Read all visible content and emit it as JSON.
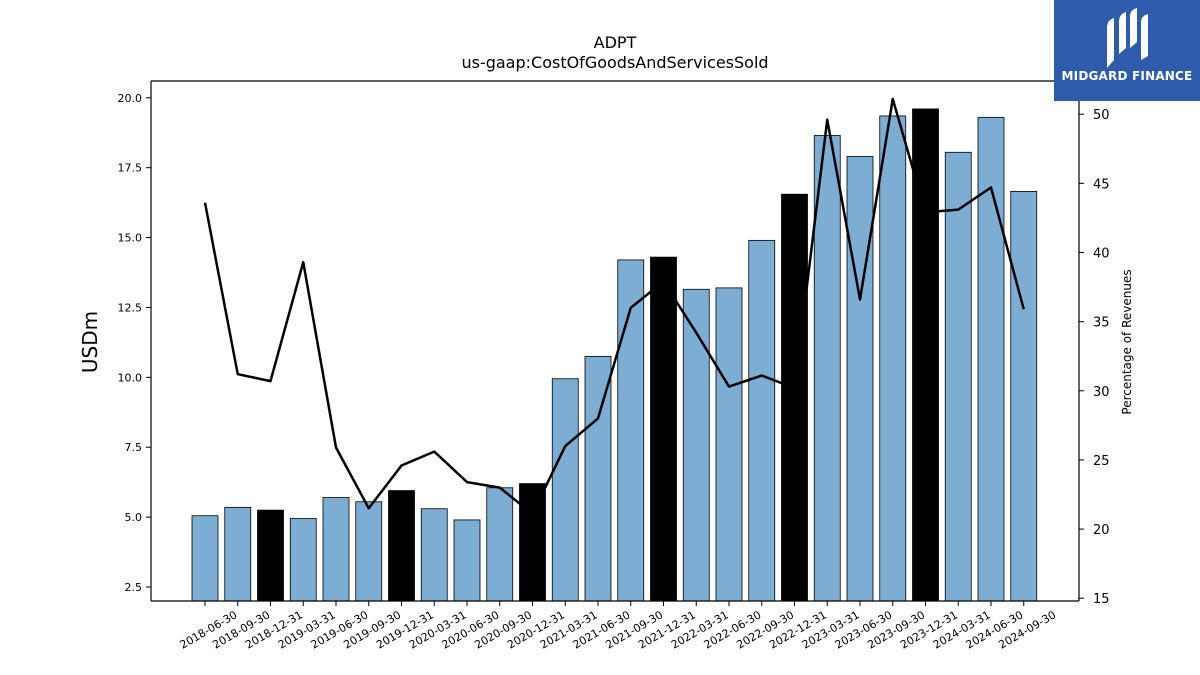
{
  "chart_data": {
    "type": "bar",
    "title": "ADPT",
    "subtitle": "us-gaap:CostOfGoodsAndServicesSold",
    "ylabel": "USDm",
    "y2label": "Percentage of Revenues",
    "ylim": [
      2.0,
      20.6
    ],
    "y2lim": [
      14.8,
      52.4
    ],
    "yticks": [
      "2.5",
      "5.0",
      "7.5",
      "10.0",
      "12.5",
      "15.0",
      "17.5",
      "20.0"
    ],
    "y2ticks": [
      "15",
      "20",
      "25",
      "30",
      "35",
      "40",
      "45",
      "50"
    ],
    "categories": [
      "2018-06-30",
      "2018-09-30",
      "2018-12-31",
      "2019-03-31",
      "2019-06-30",
      "2019-09-30",
      "2019-12-31",
      "2020-03-31",
      "2020-06-30",
      "2020-09-30",
      "2020-12-31",
      "2021-03-31",
      "2021-06-30",
      "2021-09-30",
      "2021-12-31",
      "2022-03-31",
      "2022-06-30",
      "2022-09-30",
      "2022-12-31",
      "2023-03-31",
      "2023-06-30",
      "2023-09-30",
      "2023-12-31",
      "2024-03-31",
      "2024-06-30",
      "2024-09-30"
    ],
    "series": [
      {
        "kind": "bar",
        "axis": "left",
        "values": [
          5.05,
          5.35,
          5.25,
          4.95,
          5.7,
          5.55,
          5.95,
          5.3,
          4.9,
          6.05,
          6.2,
          9.95,
          10.75,
          14.2,
          14.3,
          13.15,
          13.2,
          14.9,
          16.55,
          18.65,
          17.9,
          19.35,
          19.6,
          18.05,
          19.3,
          16.65
        ],
        "highlight_indices": [
          2,
          6,
          10,
          14,
          18,
          22
        ]
      },
      {
        "kind": "line",
        "axis": "right",
        "values": [
          43.6,
          31.2,
          30.7,
          39.3,
          25.9,
          21.5,
          24.6,
          25.6,
          23.4,
          23.0,
          21.1,
          26.0,
          28.0,
          36.0,
          37.9,
          34.2,
          30.3,
          31.1,
          30.2,
          49.6,
          36.6,
          51.1,
          42.9,
          43.1,
          44.7,
          35.9
        ]
      }
    ],
    "colors": {
      "bar": "#7eadd3",
      "bar_highlight": "#000000",
      "line": "#000000"
    },
    "grid": false,
    "legend": "none"
  },
  "logo": {
    "text": "MIDGARD FINANCE",
    "icon": "midgard-m-logo-icon",
    "background": "#2f5bab"
  }
}
